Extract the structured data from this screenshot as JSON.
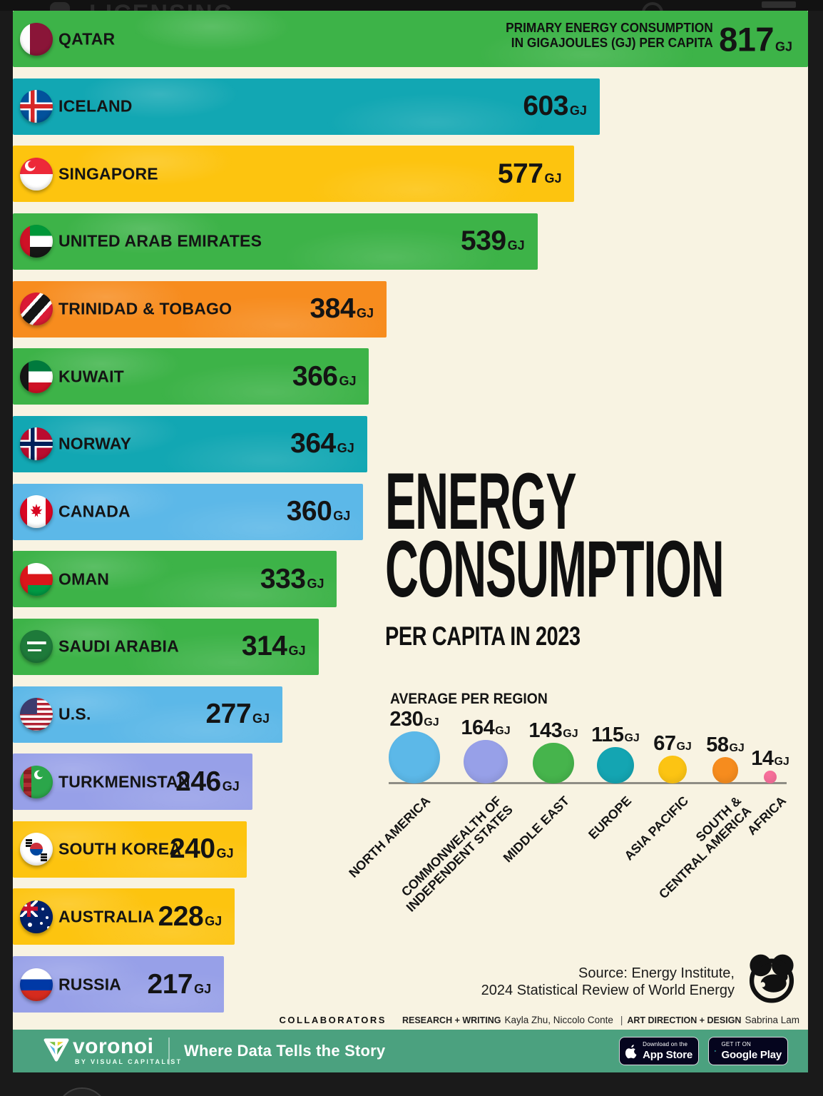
{
  "page": {
    "top_bar": {
      "licensing_label": "LICENSING"
    },
    "background_color": "#f8f3e2",
    "frame_color": "#1a1a1a"
  },
  "header_note": {
    "line1": "PRIMARY ENERGY CONSUMPTION",
    "line2": "IN GIGAJOULES (GJ) PER CAPITA"
  },
  "title": {
    "line1": "ENERGY",
    "line2": "CONSUMPTION",
    "subtitle": "PER CAPITA IN 2023"
  },
  "chart_data": {
    "type": "bar",
    "title": "ENERGY CONSUMPTION PER CAPITA IN 2023",
    "unit": "GJ",
    "max_value": 817,
    "countries": [
      {
        "name": "QATAR",
        "value": 817,
        "color": "#3db348",
        "flag": "qatar"
      },
      {
        "name": "ICELAND",
        "value": 603,
        "color": "#12a7b3",
        "flag": "iceland"
      },
      {
        "name": "SINGAPORE",
        "value": 577,
        "color": "#fdc40f",
        "flag": "singapore"
      },
      {
        "name": "UNITED ARAB EMIRATES",
        "value": 539,
        "color": "#3db348",
        "flag": "uae"
      },
      {
        "name": "TRINIDAD & TOBAGO",
        "value": 384,
        "color": "#f78c1e",
        "flag": "trinidad"
      },
      {
        "name": "KUWAIT",
        "value": 366,
        "color": "#3db348",
        "flag": "kuwait"
      },
      {
        "name": "NORWAY",
        "value": 364,
        "color": "#12a7b3",
        "flag": "norway"
      },
      {
        "name": "CANADA",
        "value": 360,
        "color": "#5cb8e8",
        "flag": "canada"
      },
      {
        "name": "OMAN",
        "value": 333,
        "color": "#3db348",
        "flag": "oman"
      },
      {
        "name": "SAUDI ARABIA",
        "value": 314,
        "color": "#3db348",
        "flag": "saudi"
      },
      {
        "name": "U.S.",
        "value": 277,
        "color": "#5cb8e8",
        "flag": "us"
      },
      {
        "name": "TURKMENISTAN",
        "value": 246,
        "color": "#97a0e8",
        "flag": "turkmenistan"
      },
      {
        "name": "SOUTH KOREA",
        "value": 240,
        "color": "#fdc40f",
        "flag": "southkorea"
      },
      {
        "name": "AUSTRALIA",
        "value": 228,
        "color": "#fdc40f",
        "flag": "australia"
      },
      {
        "name": "RUSSIA",
        "value": 217,
        "color": "#97a0e8",
        "flag": "russia"
      }
    ],
    "region_bubbles": {
      "title": "AVERAGE PER REGION",
      "items": [
        {
          "region": [
            "NORTH AMERICA"
          ],
          "value": 230,
          "color": "#5cb8e8"
        },
        {
          "region": [
            "COMMONWEALTH OF",
            "INDEPENDENT STATES"
          ],
          "value": 164,
          "color": "#97a0e8"
        },
        {
          "region": [
            "MIDDLE EAST"
          ],
          "value": 143,
          "color": "#46b44c"
        },
        {
          "region": [
            "EUROPE"
          ],
          "value": 115,
          "color": "#14a5b2"
        },
        {
          "region": [
            "ASIA PACIFIC"
          ],
          "value": 67,
          "color": "#fcc413"
        },
        {
          "region": [
            "SOUTH &",
            "CENTRAL AMERICA"
          ],
          "value": 58,
          "color": "#f68c1e"
        },
        {
          "region": [
            "AFRICA"
          ],
          "value": 14,
          "color": "#f8709b"
        }
      ]
    }
  },
  "source": {
    "line1": "Source: Energy Institute,",
    "line2": "2024 Statistical Review of World Energy"
  },
  "collaborators": {
    "label": "COLLABORATORS",
    "research_label": "RESEARCH + WRITING",
    "research_names": "Kayla Zhu, Niccolo Conte",
    "separator": "|",
    "design_label": "ART DIRECTION + DESIGN",
    "design_names": "Sabrina Lam"
  },
  "footer": {
    "brand": "voronoi",
    "brand_sub": "BY VISUAL CAPITALIST",
    "tagline": "Where Data Tells the Story",
    "appstore": {
      "small": "Download on the",
      "big": "App Store"
    },
    "googleplay": {
      "small": "GET IT ON",
      "big": "Google Play"
    },
    "bar_color": "#4ba17f"
  }
}
